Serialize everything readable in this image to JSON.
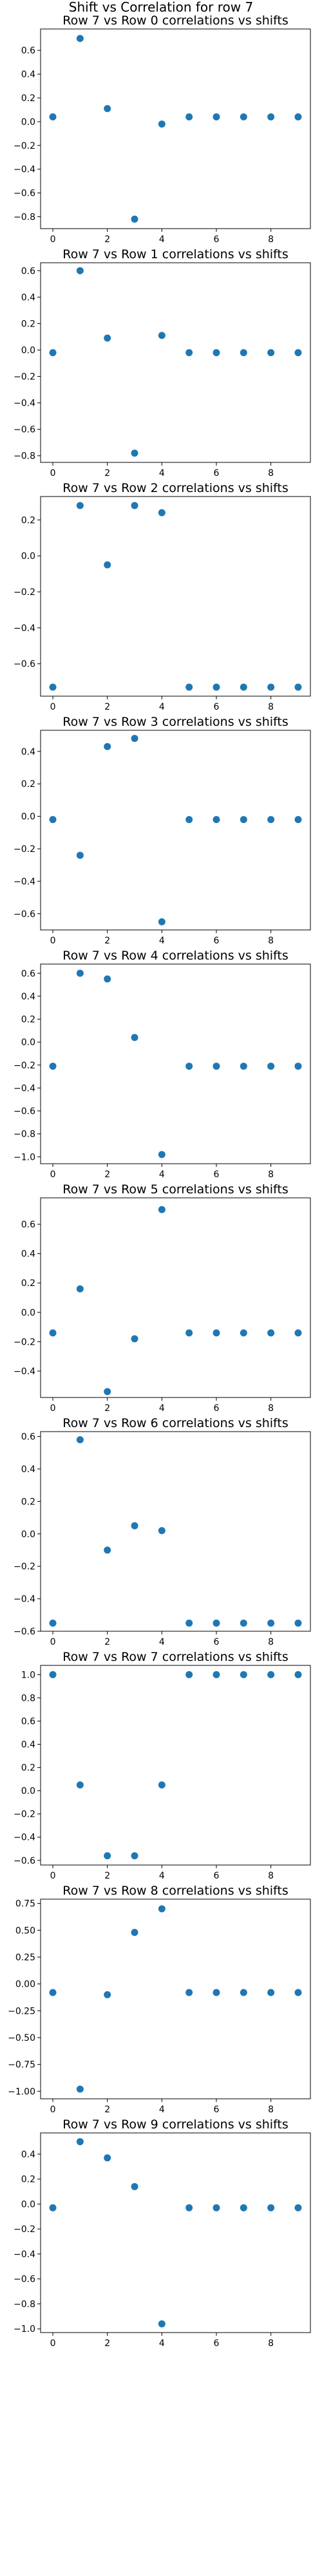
{
  "title": "Shift vs Correlation for row 7",
  "chart_data": [
    {
      "type": "scatter",
      "title": "Row 7 vs Row 0 correlations vs shifts",
      "x": [
        0,
        1,
        2,
        3,
        4,
        5,
        6,
        7,
        8,
        9
      ],
      "y": [
        0.04,
        0.7,
        0.11,
        -0.82,
        -0.02,
        0.04,
        0.04,
        0.04,
        0.04,
        0.04
      ],
      "xlim": [
        -0.45,
        9.45
      ],
      "ylim": [
        -0.9,
        0.78
      ],
      "xticks": [
        0,
        2,
        4,
        6,
        8
      ],
      "yticks": [
        -0.8,
        -0.6,
        -0.4,
        -0.2,
        0.0,
        0.2,
        0.4,
        0.6
      ],
      "yticklabels": [
        "−0.8",
        "−0.6",
        "−0.4",
        "−0.2",
        "0.0",
        "0.2",
        "0.4",
        "0.6"
      ]
    },
    {
      "type": "scatter",
      "title": "Row 7 vs Row 1 correlations vs shifts",
      "x": [
        0,
        1,
        2,
        3,
        4,
        5,
        6,
        7,
        8,
        9
      ],
      "y": [
        -0.02,
        0.6,
        0.09,
        -0.78,
        0.11,
        -0.02,
        -0.02,
        -0.02,
        -0.02,
        -0.02
      ],
      "xlim": [
        -0.45,
        9.45
      ],
      "ylim": [
        -0.85,
        0.66
      ],
      "xticks": [
        0,
        2,
        4,
        6,
        8
      ],
      "yticks": [
        -0.8,
        -0.6,
        -0.4,
        -0.2,
        0.0,
        0.2,
        0.4,
        0.6
      ],
      "yticklabels": [
        "−0.8",
        "−0.6",
        "−0.4",
        "−0.2",
        "0.0",
        "0.2",
        "0.4",
        "0.6"
      ]
    },
    {
      "type": "scatter",
      "title": "Row 7 vs Row 2 correlations vs shifts",
      "x": [
        0,
        1,
        2,
        3,
        4,
        5,
        6,
        7,
        8,
        9
      ],
      "y": [
        -0.73,
        0.28,
        -0.05,
        0.28,
        0.24,
        -0.73,
        -0.73,
        -0.73,
        -0.73,
        -0.73
      ],
      "xlim": [
        -0.45,
        9.45
      ],
      "ylim": [
        -0.78,
        0.33
      ],
      "xticks": [
        0,
        2,
        4,
        6,
        8
      ],
      "yticks": [
        -0.6,
        -0.4,
        -0.2,
        0.0,
        0.2
      ],
      "yticklabels": [
        "−0.6",
        "−0.4",
        "−0.2",
        "0.0",
        "0.2"
      ]
    },
    {
      "type": "scatter",
      "title": "Row 7 vs Row 3 correlations vs shifts",
      "x": [
        0,
        1,
        2,
        3,
        4,
        5,
        6,
        7,
        8,
        9
      ],
      "y": [
        -0.02,
        -0.24,
        0.43,
        0.48,
        -0.65,
        -0.02,
        -0.02,
        -0.02,
        -0.02,
        -0.02
      ],
      "xlim": [
        -0.45,
        9.45
      ],
      "ylim": [
        -0.7,
        0.53
      ],
      "xticks": [
        0,
        2,
        4,
        6,
        8
      ],
      "yticks": [
        -0.6,
        -0.4,
        -0.2,
        0.0,
        0.2,
        0.4
      ],
      "yticklabels": [
        "−0.6",
        "−0.4",
        "−0.2",
        "0.0",
        "0.2",
        "0.4"
      ]
    },
    {
      "type": "scatter",
      "title": "Row 7 vs Row 4 correlations vs shifts",
      "x": [
        0,
        1,
        2,
        3,
        4,
        5,
        6,
        7,
        8,
        9
      ],
      "y": [
        -0.21,
        0.6,
        0.55,
        0.04,
        -0.98,
        -0.21,
        -0.21,
        -0.21,
        -0.21,
        -0.21
      ],
      "xlim": [
        -0.45,
        9.45
      ],
      "ylim": [
        -1.06,
        0.68
      ],
      "xticks": [
        0,
        2,
        4,
        6,
        8
      ],
      "yticks": [
        -1.0,
        -0.8,
        -0.6,
        -0.4,
        -0.2,
        0.0,
        0.2,
        0.4,
        0.6
      ],
      "yticklabels": [
        "−1.0",
        "−0.8",
        "−0.6",
        "−0.4",
        "−0.2",
        "0.0",
        "0.2",
        "0.4",
        "0.6"
      ]
    },
    {
      "type": "scatter",
      "title": "Row 7 vs Row 5 correlations vs shifts",
      "x": [
        0,
        1,
        2,
        3,
        4,
        5,
        6,
        7,
        8,
        9
      ],
      "y": [
        -0.14,
        0.16,
        -0.54,
        -0.18,
        0.7,
        -0.14,
        -0.14,
        -0.14,
        -0.14,
        -0.14
      ],
      "xlim": [
        -0.45,
        9.45
      ],
      "ylim": [
        -0.58,
        0.78
      ],
      "xticks": [
        0,
        2,
        4,
        6,
        8
      ],
      "yticks": [
        -0.4,
        -0.2,
        0.0,
        0.2,
        0.4,
        0.6
      ],
      "yticklabels": [
        "−0.4",
        "−0.2",
        "0.0",
        "0.2",
        "0.4",
        "0.6"
      ]
    },
    {
      "type": "scatter",
      "title": "Row 7 vs Row 6 correlations vs shifts",
      "x": [
        0,
        1,
        2,
        3,
        4,
        5,
        6,
        7,
        8,
        9
      ],
      "y": [
        -0.55,
        0.58,
        -0.1,
        0.05,
        0.02,
        -0.55,
        -0.55,
        -0.55,
        -0.55,
        -0.55
      ],
      "xlim": [
        -0.45,
        9.45
      ],
      "ylim": [
        -0.6,
        0.63
      ],
      "xticks": [
        0,
        2,
        4,
        6,
        8
      ],
      "yticks": [
        -0.6,
        -0.4,
        -0.2,
        0.0,
        0.2,
        0.4,
        0.6
      ],
      "yticklabels": [
        "−0.6",
        "−0.4",
        "−0.2",
        "0.0",
        "0.2",
        "0.4",
        "0.6"
      ]
    },
    {
      "type": "scatter",
      "title": "Row 7 vs Row 7 correlations vs shifts",
      "x": [
        0,
        1,
        2,
        3,
        4,
        5,
        6,
        7,
        8,
        9
      ],
      "y": [
        1.0,
        0.05,
        -0.56,
        -0.56,
        0.05,
        1.0,
        1.0,
        1.0,
        1.0,
        1.0
      ],
      "xlim": [
        -0.45,
        9.45
      ],
      "ylim": [
        -0.64,
        1.08
      ],
      "xticks": [
        0,
        2,
        4,
        6,
        8
      ],
      "yticks": [
        -0.6,
        -0.4,
        -0.2,
        0.0,
        0.2,
        0.4,
        0.6,
        0.8,
        1.0
      ],
      "yticklabels": [
        "−0.6",
        "−0.4",
        "−0.2",
        "0.0",
        "0.2",
        "0.4",
        "0.6",
        "0.8",
        "1.0"
      ]
    },
    {
      "type": "scatter",
      "title": "Row 7 vs Row 8 correlations vs shifts",
      "x": [
        0,
        1,
        2,
        3,
        4,
        5,
        6,
        7,
        8,
        9
      ],
      "y": [
        -0.08,
        -0.98,
        -0.1,
        0.48,
        0.7,
        -0.08,
        -0.08,
        -0.08,
        -0.08,
        -0.08
      ],
      "xlim": [
        -0.45,
        9.45
      ],
      "ylim": [
        -1.07,
        0.79
      ],
      "xticks": [
        0,
        2,
        4,
        6,
        8
      ],
      "yticks": [
        -1.0,
        -0.75,
        -0.5,
        -0.25,
        0.0,
        0.25,
        0.5,
        0.75
      ],
      "yticklabels": [
        "−1.00",
        "−0.75",
        "−0.50",
        "−0.25",
        "0.00",
        "0.25",
        "0.50",
        "0.75"
      ]
    },
    {
      "type": "scatter",
      "title": "Row 7 vs Row 9 correlations vs shifts",
      "x": [
        0,
        1,
        2,
        3,
        4,
        5,
        6,
        7,
        8,
        9
      ],
      "y": [
        -0.03,
        0.5,
        0.37,
        0.14,
        -0.96,
        -0.03,
        -0.03,
        -0.03,
        -0.03,
        -0.03
      ],
      "xlim": [
        -0.45,
        9.45
      ],
      "ylim": [
        -1.03,
        0.57
      ],
      "xticks": [
        0,
        2,
        4,
        6,
        8
      ],
      "yticks": [
        -1.0,
        -0.8,
        -0.6,
        -0.4,
        -0.2,
        0.0,
        0.2,
        0.4
      ],
      "yticklabels": [
        "−1.0",
        "−0.8",
        "−0.6",
        "−0.4",
        "−0.2",
        "0.0",
        "0.2",
        "0.4"
      ]
    }
  ]
}
